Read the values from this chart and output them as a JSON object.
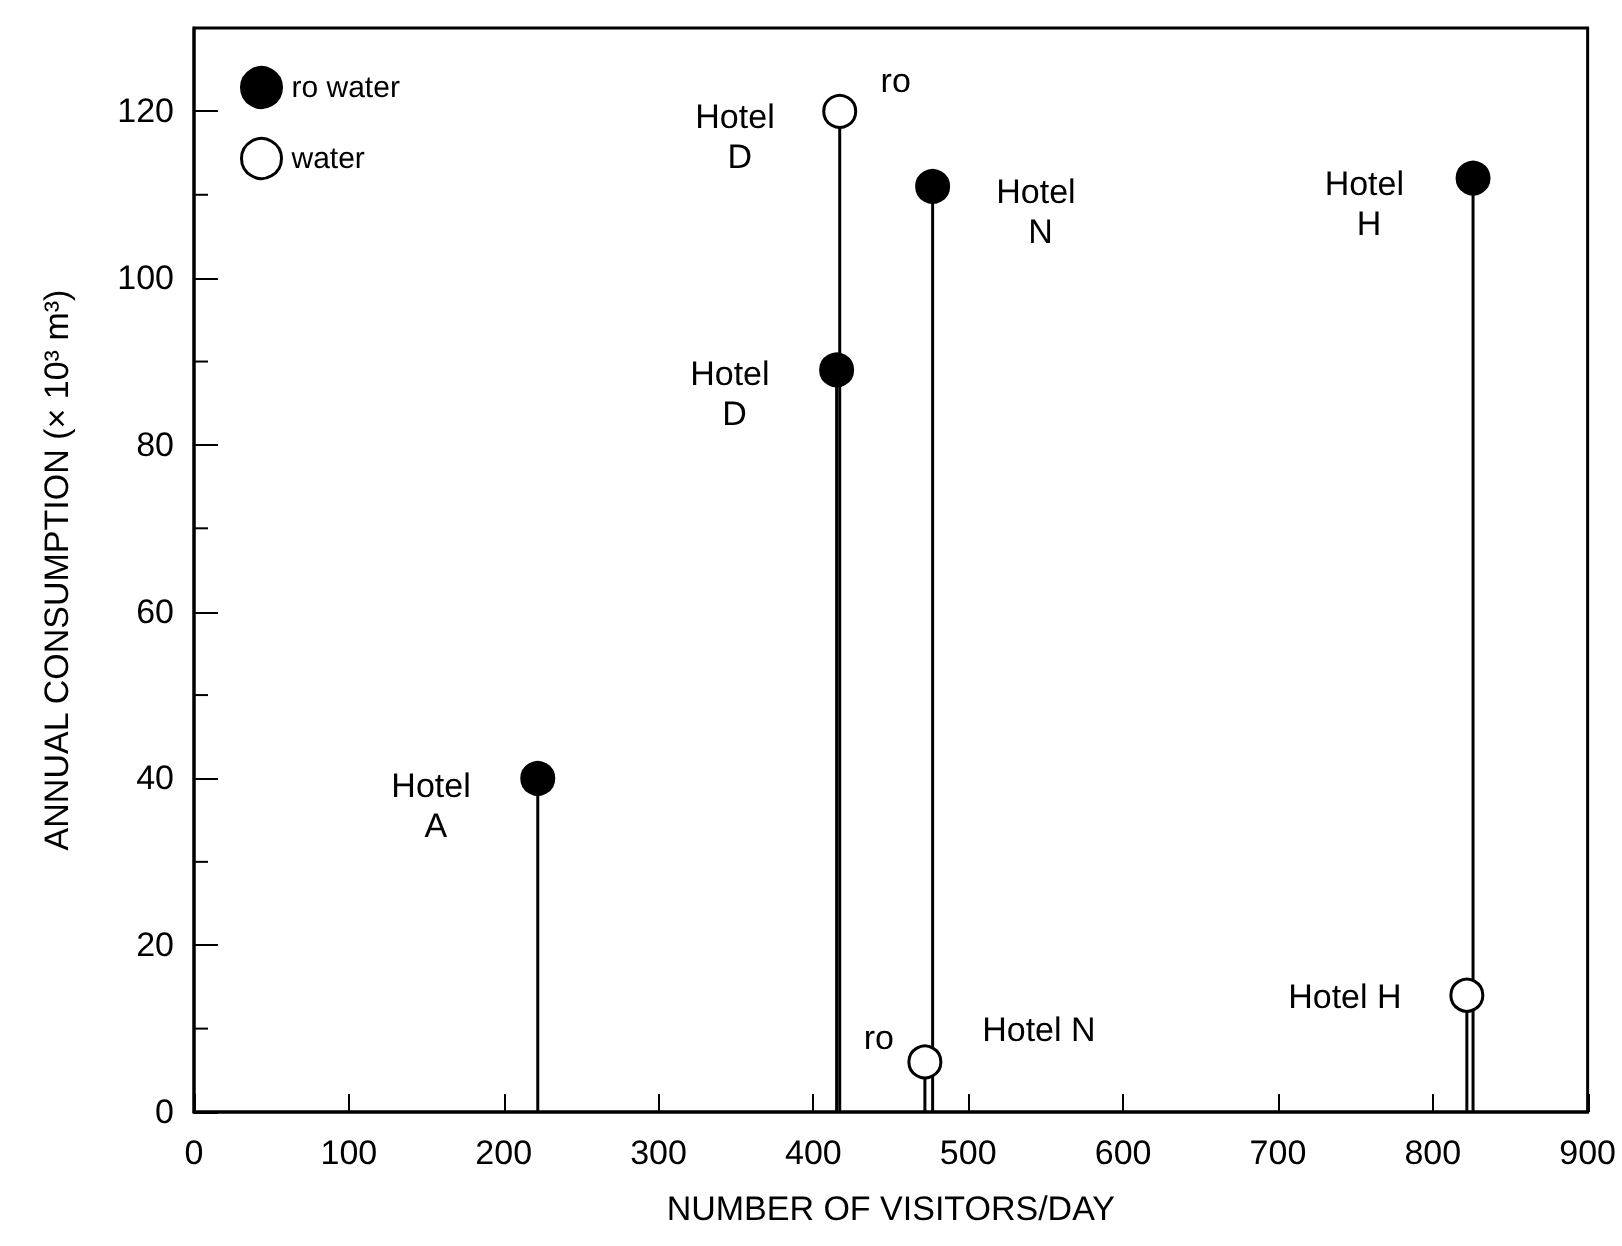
{
  "chart_data": {
    "type": "lollipop",
    "xlabel": "NUMBER OF VISITORS/DAY",
    "ylabel": "ANNUAL CONSUMPTION (× 10³ m³)",
    "series": [
      {
        "name": "ro water",
        "color": "#000000",
        "x": [
          222,
          415,
          477,
          826
        ],
        "values": [
          40,
          89,
          111,
          112
        ]
      },
      {
        "name": "water",
        "color": "#ffffff",
        "x": [
          417,
          472,
          822
        ],
        "values": [
          120,
          6,
          14
        ]
      }
    ],
    "xlim": [
      0,
      900
    ],
    "xticks": [
      0,
      100,
      200,
      300,
      400,
      500,
      600,
      700,
      800,
      900
    ],
    "ylim": [
      0,
      130
    ],
    "yticks": [
      0,
      20,
      40,
      60,
      80,
      100,
      120
    ],
    "legend": "top left",
    "grid": false,
    "marker": "circle",
    "annotations": [
      {
        "text": "Hotel A",
        "x": 222,
        "y": 40
      },
      {
        "text": "Hotel D",
        "x": 415,
        "y": 89
      },
      {
        "text": "Hotel D",
        "x": 417,
        "y": 120
      },
      {
        "text": "ro",
        "x": 417,
        "y": 120
      },
      {
        "text": "Hotel N",
        "x": 477,
        "y": 111
      },
      {
        "text": "ro",
        "x": 472,
        "y": 6
      },
      {
        "text": "Hotel N",
        "x": 472,
        "y": 6
      },
      {
        "text": "Hotel H",
        "x": 826,
        "y": 112
      },
      {
        "text": "Hotel H",
        "x": 822,
        "y": 14
      }
    ]
  }
}
